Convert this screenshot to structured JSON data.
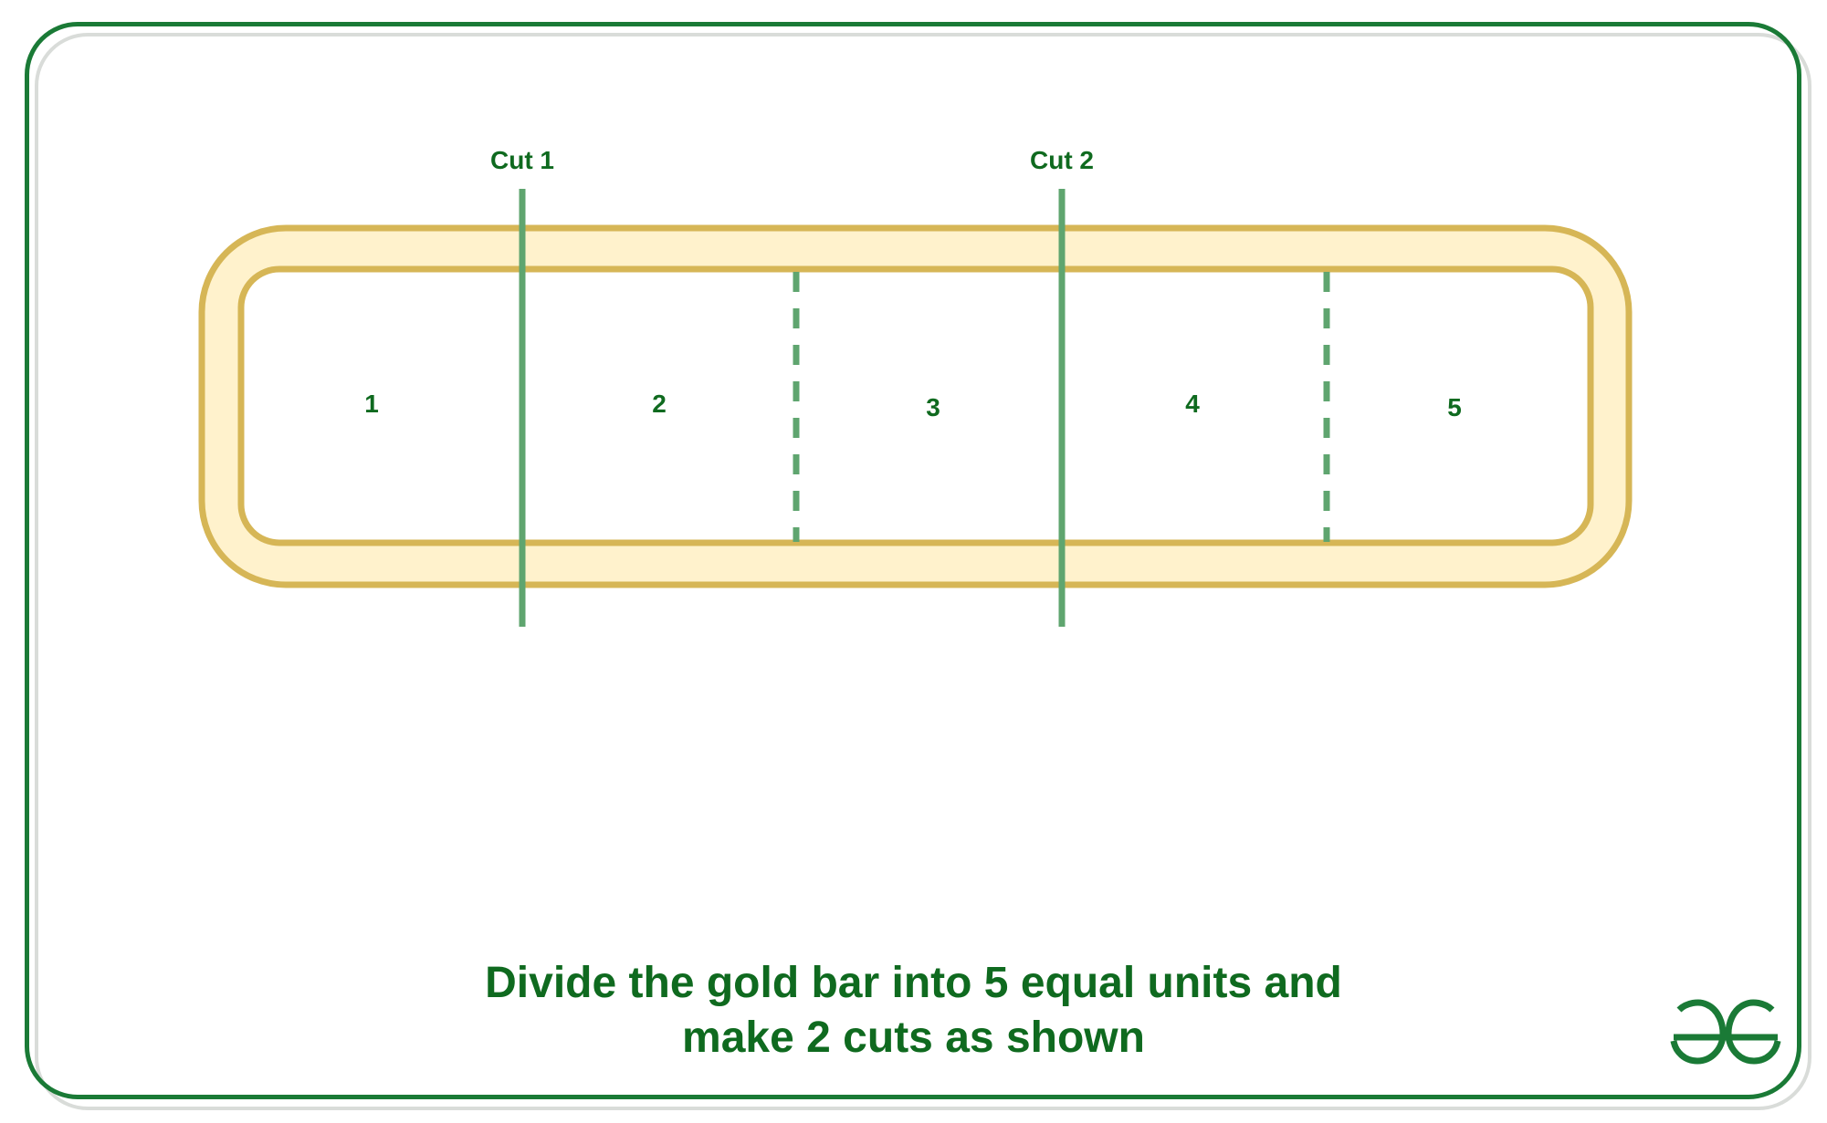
{
  "diagram": {
    "cut_labels": [
      "Cut 1",
      "Cut 2"
    ],
    "unit_labels": [
      "1",
      "2",
      "3",
      "4",
      "5"
    ],
    "caption": {
      "line1": "Divide the gold bar into 5 equal units and",
      "line2": "make 2 cuts as shown"
    }
  },
  "colors": {
    "frame": "#1a7a36",
    "text": "#0f6a1f",
    "bar_fill": "#fff2cc",
    "bar_stroke": "#d6b656",
    "cut_line": "#5fa56f"
  },
  "logo": {
    "icon": "geeksforgeeks-logo-icon"
  }
}
